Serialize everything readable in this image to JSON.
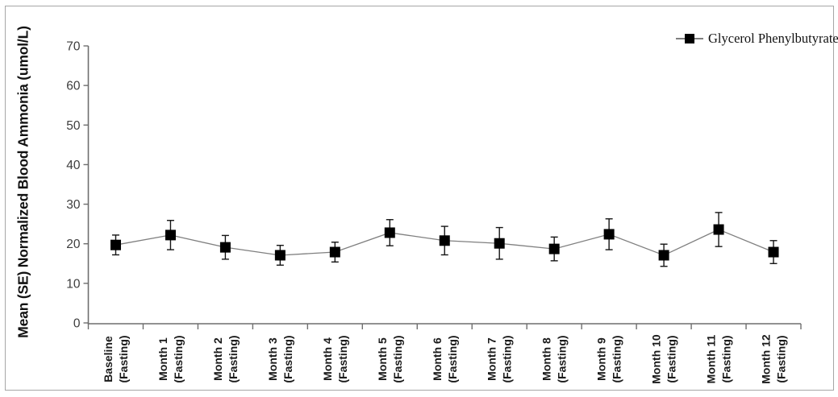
{
  "chart_data": {
    "type": "line",
    "ylabel": "Mean (SE) Normalized Blood Ammonia (umol/L)",
    "xlabel": "",
    "ylim": [
      0,
      70
    ],
    "yticks": [
      0,
      10,
      20,
      30,
      40,
      50,
      60,
      70
    ],
    "grid": false,
    "error_bars": "SE",
    "legend_position": "top-right",
    "categories": [
      [
        "Baseline",
        "(Fasting)"
      ],
      [
        "Month 1",
        "(Fasting)"
      ],
      [
        "Month 2",
        "(Fasting)"
      ],
      [
        "Month 3",
        "(Fasting)"
      ],
      [
        "Month 4",
        "(Fasting)"
      ],
      [
        "Month 5",
        "(Fasting)"
      ],
      [
        "Month 6",
        "(Fasting)"
      ],
      [
        "Month 7",
        "(Fasting)"
      ],
      [
        "Month 8",
        "(Fasting)"
      ],
      [
        "Month 9",
        "(Fasting)"
      ],
      [
        "Month 10",
        "(Fasting)"
      ],
      [
        "Month 11",
        "(Fasting)"
      ],
      [
        "Month 12",
        "(Fasting)"
      ]
    ],
    "series": [
      {
        "name": "Glycerol Phenylbutyrate",
        "marker": "filled-square",
        "values": [
          19.7,
          22.2,
          19.1,
          17.1,
          17.9,
          22.8,
          20.8,
          20.1,
          18.7,
          22.4,
          17.1,
          23.6,
          17.9
        ],
        "se": [
          2.5,
          3.7,
          3.0,
          2.5,
          2.5,
          3.3,
          3.6,
          4.0,
          3.0,
          3.9,
          2.8,
          4.3,
          2.9
        ]
      }
    ]
  },
  "colors": {
    "axis": "#6e6e6e",
    "tick_label_text": "#3d3d3d",
    "category_label_text": "#1a1a1a",
    "series_line": "#7f7f7f",
    "marker_fill": "#000000",
    "error_bar": "#151515",
    "figure_border": "#a6a6a6",
    "background": "#ffffff"
  }
}
